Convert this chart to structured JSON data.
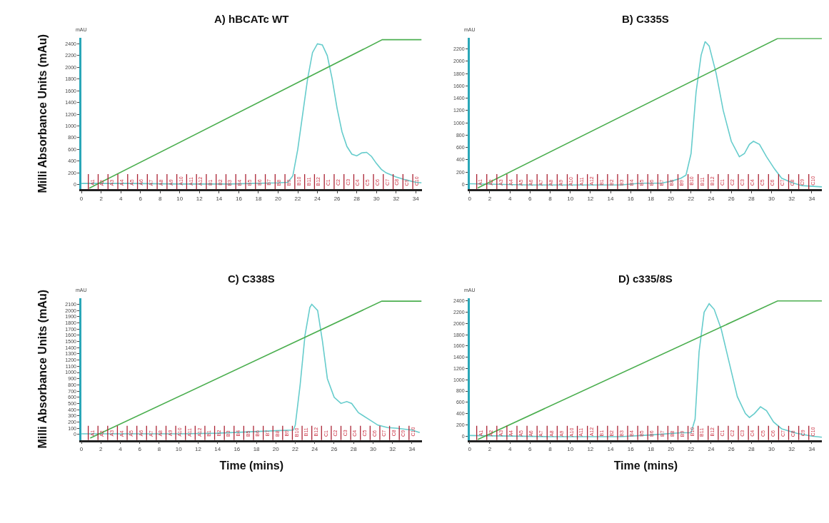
{
  "chart_data": [
    {
      "type": "line",
      "title": "A) hBCATc WT",
      "ylabel": "Milli Absorbance Units (mAu)",
      "xlim": [
        0,
        34.6
      ],
      "ylim": [
        -80,
        2500
      ],
      "xticks": [
        0,
        2,
        4,
        6,
        8,
        10,
        12,
        14,
        16,
        18,
        20,
        22,
        24,
        26,
        28,
        30,
        32,
        34
      ],
      "yticks": [
        0,
        200,
        400,
        600,
        800,
        1000,
        1200,
        1400,
        1600,
        1800,
        2000,
        2200,
        2400
      ],
      "marker": "none",
      "series": [
        {
          "color": "#66cccc",
          "x": [
            0,
            5,
            10,
            15,
            20,
            21,
            21.5,
            22,
            22.5,
            23,
            23.5,
            24,
            24.5,
            25,
            25.5,
            26,
            26.5,
            27,
            27.5,
            28,
            28.5,
            29,
            29.5,
            30,
            30.5,
            31,
            32,
            33,
            34,
            34.6
          ],
          "values": [
            20,
            20,
            10,
            10,
            30,
            40,
            150,
            600,
            1200,
            1800,
            2250,
            2400,
            2380,
            2200,
            1800,
            1300,
            900,
            650,
            520,
            490,
            540,
            550,
            480,
            360,
            260,
            200,
            130,
            80,
            40,
            30
          ]
        },
        {
          "color": "#4caf50",
          "x": [
            0.8,
            30.6,
            34.6
          ],
          "values": [
            -60,
            2470,
            2470
          ]
        }
      ],
      "annotations": [
        "mAU"
      ],
      "ref_lines": [
        {
          "axis": "x",
          "value": 0.7,
          "label": "A1"
        },
        {
          "axis": "x",
          "value": 1.7,
          "label": "A2"
        },
        {
          "axis": "x",
          "value": 2.7,
          "label": "A3"
        },
        {
          "axis": "x",
          "value": 3.7,
          "label": "A4"
        },
        {
          "axis": "x",
          "value": 4.7,
          "label": "A5"
        },
        {
          "axis": "x",
          "value": 5.7,
          "label": "A6"
        },
        {
          "axis": "x",
          "value": 6.7,
          "label": "A7"
        },
        {
          "axis": "x",
          "value": 7.7,
          "label": "A8"
        },
        {
          "axis": "x",
          "value": 8.7,
          "label": "A9"
        },
        {
          "axis": "x",
          "value": 9.7,
          "label": "A10"
        },
        {
          "axis": "x",
          "value": 10.7,
          "label": "A11"
        },
        {
          "axis": "x",
          "value": 11.7,
          "label": "A12"
        },
        {
          "axis": "x",
          "value": 12.7,
          "label": "B1"
        },
        {
          "axis": "x",
          "value": 13.7,
          "label": "B2"
        },
        {
          "axis": "x",
          "value": 14.7,
          "label": "B3"
        },
        {
          "axis": "x",
          "value": 15.7,
          "label": "B4"
        },
        {
          "axis": "x",
          "value": 16.7,
          "label": "B5"
        },
        {
          "axis": "x",
          "value": 17.7,
          "label": "B6"
        },
        {
          "axis": "x",
          "value": 18.7,
          "label": "B7"
        },
        {
          "axis": "x",
          "value": 19.7,
          "label": "B8"
        },
        {
          "axis": "x",
          "value": 20.7,
          "label": "B9"
        },
        {
          "axis": "x",
          "value": 21.7,
          "label": "B10"
        },
        {
          "axis": "x",
          "value": 22.7,
          "label": "B11"
        },
        {
          "axis": "x",
          "value": 23.7,
          "label": "B12"
        },
        {
          "axis": "x",
          "value": 24.7,
          "label": "C1"
        },
        {
          "axis": "x",
          "value": 25.7,
          "label": "C2"
        },
        {
          "axis": "x",
          "value": 26.7,
          "label": "C3"
        },
        {
          "axis": "x",
          "value": 27.7,
          "label": "C4"
        },
        {
          "axis": "x",
          "value": 28.7,
          "label": "C5"
        },
        {
          "axis": "x",
          "value": 29.7,
          "label": "C6"
        },
        {
          "axis": "x",
          "value": 30.7,
          "label": "C7"
        },
        {
          "axis": "x",
          "value": 31.7,
          "label": "C8"
        },
        {
          "axis": "x",
          "value": 32.7,
          "label": "C9"
        },
        {
          "axis": "x",
          "value": 33.7,
          "label": "C10"
        }
      ]
    },
    {
      "type": "line",
      "title": "B) C335S",
      "xlim": [
        0,
        35
      ],
      "ylim": [
        -80,
        2380
      ],
      "xticks": [
        0,
        2,
        4,
        6,
        8,
        10,
        12,
        14,
        16,
        18,
        20,
        22,
        24,
        26,
        28,
        30,
        32,
        34
      ],
      "yticks": [
        0,
        200,
        400,
        600,
        800,
        1000,
        1200,
        1400,
        1600,
        1800,
        2000,
        2200
      ],
      "marker": "none",
      "series": [
        {
          "color": "#66cccc",
          "x": [
            0,
            6,
            15,
            17,
            19,
            20,
            21,
            21.5,
            22,
            22.5,
            23,
            23.4,
            23.8,
            24.5,
            25.2,
            26,
            26.8,
            27.3,
            27.8,
            28.2,
            28.8,
            29.5,
            30.3,
            31,
            32,
            33,
            35
          ],
          "values": [
            10,
            -10,
            -10,
            20,
            20,
            50,
            100,
            150,
            500,
            1500,
            2100,
            2320,
            2250,
            1800,
            1200,
            700,
            450,
            500,
            650,
            700,
            650,
            450,
            250,
            100,
            30,
            -20,
            -40
          ]
        },
        {
          "color": "#4caf50",
          "x": [
            0.8,
            30.6,
            35
          ],
          "values": [
            -60,
            2370,
            2370
          ]
        }
      ],
      "annotations": [
        "mAU"
      ],
      "ref_lines": [
        {
          "axis": "x",
          "value": 0.7,
          "label": "A1"
        },
        {
          "axis": "x",
          "value": 1.7,
          "label": "A2"
        },
        {
          "axis": "x",
          "value": 2.7,
          "label": "A3"
        },
        {
          "axis": "x",
          "value": 3.7,
          "label": "A4"
        },
        {
          "axis": "x",
          "value": 4.7,
          "label": "A5"
        },
        {
          "axis": "x",
          "value": 5.7,
          "label": "A6"
        },
        {
          "axis": "x",
          "value": 6.7,
          "label": "A7"
        },
        {
          "axis": "x",
          "value": 7.7,
          "label": "A8"
        },
        {
          "axis": "x",
          "value": 8.7,
          "label": "A9"
        },
        {
          "axis": "x",
          "value": 9.7,
          "label": "A10"
        },
        {
          "axis": "x",
          "value": 10.7,
          "label": "A11"
        },
        {
          "axis": "x",
          "value": 11.7,
          "label": "A12"
        },
        {
          "axis": "x",
          "value": 12.7,
          "label": "B1"
        },
        {
          "axis": "x",
          "value": 13.7,
          "label": "B2"
        },
        {
          "axis": "x",
          "value": 14.7,
          "label": "B3"
        },
        {
          "axis": "x",
          "value": 15.7,
          "label": "B4"
        },
        {
          "axis": "x",
          "value": 16.7,
          "label": "B5"
        },
        {
          "axis": "x",
          "value": 17.7,
          "label": "B6"
        },
        {
          "axis": "x",
          "value": 18.7,
          "label": "B7"
        },
        {
          "axis": "x",
          "value": 19.7,
          "label": "B8"
        },
        {
          "axis": "x",
          "value": 20.7,
          "label": "B9"
        },
        {
          "axis": "x",
          "value": 21.7,
          "label": "B10"
        },
        {
          "axis": "x",
          "value": 22.7,
          "label": "B11"
        },
        {
          "axis": "x",
          "value": 23.7,
          "label": "B12"
        },
        {
          "axis": "x",
          "value": 24.7,
          "label": "C1"
        },
        {
          "axis": "x",
          "value": 25.7,
          "label": "C2"
        },
        {
          "axis": "x",
          "value": 26.7,
          "label": "C3"
        },
        {
          "axis": "x",
          "value": 27.7,
          "label": "C4"
        },
        {
          "axis": "x",
          "value": 28.7,
          "label": "C5"
        },
        {
          "axis": "x",
          "value": 29.7,
          "label": "C6"
        },
        {
          "axis": "x",
          "value": 30.7,
          "label": "C7"
        },
        {
          "axis": "x",
          "value": 31.7,
          "label": "C8"
        },
        {
          "axis": "x",
          "value": 32.7,
          "label": "C9"
        },
        {
          "axis": "x",
          "value": 33.7,
          "label": "C10"
        }
      ]
    },
    {
      "type": "line",
      "title": "C) C338S",
      "ylabel": "Milli Absorbance Units (mAu)",
      "xlabel": "Time (mins)",
      "xlim": [
        0,
        35
      ],
      "ylim": [
        -90,
        2200
      ],
      "xticks": [
        0,
        2,
        4,
        6,
        8,
        10,
        12,
        14,
        16,
        18,
        20,
        22,
        24,
        26,
        28,
        30,
        32,
        34
      ],
      "yticks": [
        0,
        100,
        200,
        300,
        400,
        500,
        600,
        700,
        800,
        900,
        1000,
        1100,
        1200,
        1300,
        1400,
        1500,
        1600,
        1700,
        1800,
        1900,
        2000,
        2100
      ],
      "marker": "none",
      "series": [
        {
          "color": "#66cccc",
          "x": [
            0,
            10,
            14,
            20,
            21.8,
            22,
            22.5,
            23,
            23.5,
            23.7,
            24.3,
            24.8,
            25.3,
            26,
            26.7,
            27.3,
            27.8,
            28.5,
            29.5,
            30.5,
            31.5,
            32.5,
            34,
            34.8
          ],
          "values": [
            10,
            10,
            20,
            60,
            70,
            150,
            800,
            1600,
            2050,
            2100,
            2000,
            1500,
            900,
            600,
            500,
            530,
            500,
            350,
            250,
            150,
            110,
            100,
            70,
            30
          ]
        },
        {
          "color": "#4caf50",
          "x": [
            0.9,
            30.9,
            35
          ],
          "values": [
            -60,
            2150,
            2150
          ]
        }
      ],
      "annotations": [
        "mAU"
      ],
      "ref_lines": [
        {
          "axis": "x",
          "value": 0.7,
          "label": "A1"
        },
        {
          "axis": "x",
          "value": 1.7,
          "label": "A2"
        },
        {
          "axis": "x",
          "value": 2.7,
          "label": "A3"
        },
        {
          "axis": "x",
          "value": 3.7,
          "label": "A4"
        },
        {
          "axis": "x",
          "value": 4.7,
          "label": "A5"
        },
        {
          "axis": "x",
          "value": 5.7,
          "label": "A6"
        },
        {
          "axis": "x",
          "value": 6.7,
          "label": "A7"
        },
        {
          "axis": "x",
          "value": 7.7,
          "label": "A8"
        },
        {
          "axis": "x",
          "value": 8.7,
          "label": "A9"
        },
        {
          "axis": "x",
          "value": 9.7,
          "label": "A10"
        },
        {
          "axis": "x",
          "value": 10.7,
          "label": "A11"
        },
        {
          "axis": "x",
          "value": 11.7,
          "label": "A12"
        },
        {
          "axis": "x",
          "value": 12.7,
          "label": "B1"
        },
        {
          "axis": "x",
          "value": 13.7,
          "label": "B2"
        },
        {
          "axis": "x",
          "value": 14.7,
          "label": "B3"
        },
        {
          "axis": "x",
          "value": 15.7,
          "label": "B4"
        },
        {
          "axis": "x",
          "value": 16.7,
          "label": "B5"
        },
        {
          "axis": "x",
          "value": 17.7,
          "label": "B6"
        },
        {
          "axis": "x",
          "value": 18.7,
          "label": "B7"
        },
        {
          "axis": "x",
          "value": 19.7,
          "label": "B8"
        },
        {
          "axis": "x",
          "value": 20.7,
          "label": "B9"
        },
        {
          "axis": "x",
          "value": 21.7,
          "label": "B10"
        },
        {
          "axis": "x",
          "value": 22.7,
          "label": "B11"
        },
        {
          "axis": "x",
          "value": 23.7,
          "label": "B12"
        },
        {
          "axis": "x",
          "value": 24.7,
          "label": "C1"
        },
        {
          "axis": "x",
          "value": 25.7,
          "label": "C2"
        },
        {
          "axis": "x",
          "value": 26.7,
          "label": "C3"
        },
        {
          "axis": "x",
          "value": 27.7,
          "label": "C4"
        },
        {
          "axis": "x",
          "value": 28.7,
          "label": "C5"
        },
        {
          "axis": "x",
          "value": 29.7,
          "label": "C6"
        },
        {
          "axis": "x",
          "value": 30.7,
          "label": "C7"
        },
        {
          "axis": "x",
          "value": 31.7,
          "label": "C8"
        },
        {
          "axis": "x",
          "value": 32.7,
          "label": "C9"
        },
        {
          "axis": "x",
          "value": 33.7,
          "label": "C10"
        }
      ]
    },
    {
      "type": "line",
      "title": "D) c335/8S",
      "xlabel": "Time (mins)",
      "xlim": [
        0,
        35
      ],
      "ylim": [
        -70,
        2450
      ],
      "xticks": [
        0,
        2,
        4,
        6,
        8,
        10,
        12,
        14,
        16,
        18,
        20,
        22,
        24,
        26,
        28,
        30,
        32,
        34
      ],
      "yticks": [
        0,
        200,
        400,
        600,
        800,
        1000,
        1200,
        1400,
        1600,
        1800,
        2000,
        2200,
        2400
      ],
      "marker": "none",
      "series": [
        {
          "color": "#66cccc",
          "x": [
            0,
            8,
            15,
            18,
            21,
            22,
            22.4,
            22.8,
            23.3,
            23.8,
            24.3,
            25,
            25.8,
            26.6,
            27.4,
            27.8,
            28.3,
            28.9,
            29.5,
            30.2,
            31,
            32.5,
            34,
            35
          ],
          "values": [
            10,
            -10,
            -10,
            20,
            60,
            60,
            300,
            1500,
            2200,
            2350,
            2250,
            1900,
            1300,
            700,
            400,
            330,
            400,
            520,
            450,
            250,
            130,
            50,
            0,
            -20
          ]
        },
        {
          "color": "#4caf50",
          "x": [
            0.8,
            30.6,
            35
          ],
          "values": [
            -60,
            2400,
            2400
          ]
        }
      ],
      "annotations": [
        "mAU"
      ],
      "ref_lines": [
        {
          "axis": "x",
          "value": 0.7,
          "label": "A1"
        },
        {
          "axis": "x",
          "value": 1.7,
          "label": "A2"
        },
        {
          "axis": "x",
          "value": 2.7,
          "label": "A3"
        },
        {
          "axis": "x",
          "value": 3.7,
          "label": "A4"
        },
        {
          "axis": "x",
          "value": 4.7,
          "label": "A5"
        },
        {
          "axis": "x",
          "value": 5.7,
          "label": "A6"
        },
        {
          "axis": "x",
          "value": 6.7,
          "label": "A7"
        },
        {
          "axis": "x",
          "value": 7.7,
          "label": "A8"
        },
        {
          "axis": "x",
          "value": 8.7,
          "label": "A9"
        },
        {
          "axis": "x",
          "value": 9.7,
          "label": "A10"
        },
        {
          "axis": "x",
          "value": 10.7,
          "label": "A11"
        },
        {
          "axis": "x",
          "value": 11.7,
          "label": "A12"
        },
        {
          "axis": "x",
          "value": 12.7,
          "label": "B1"
        },
        {
          "axis": "x",
          "value": 13.7,
          "label": "B2"
        },
        {
          "axis": "x",
          "value": 14.7,
          "label": "B3"
        },
        {
          "axis": "x",
          "value": 15.7,
          "label": "B4"
        },
        {
          "axis": "x",
          "value": 16.7,
          "label": "B5"
        },
        {
          "axis": "x",
          "value": 17.7,
          "label": "B6"
        },
        {
          "axis": "x",
          "value": 18.7,
          "label": "B7"
        },
        {
          "axis": "x",
          "value": 19.7,
          "label": "B8"
        },
        {
          "axis": "x",
          "value": 20.7,
          "label": "B9"
        },
        {
          "axis": "x",
          "value": 21.7,
          "label": "B10"
        },
        {
          "axis": "x",
          "value": 22.7,
          "label": "B11"
        },
        {
          "axis": "x",
          "value": 23.7,
          "label": "B12"
        },
        {
          "axis": "x",
          "value": 24.7,
          "label": "C1"
        },
        {
          "axis": "x",
          "value": 25.7,
          "label": "C2"
        },
        {
          "axis": "x",
          "value": 26.7,
          "label": "C3"
        },
        {
          "axis": "x",
          "value": 27.7,
          "label": "C4"
        },
        {
          "axis": "x",
          "value": 28.7,
          "label": "C5"
        },
        {
          "axis": "x",
          "value": 29.7,
          "label": "C6"
        },
        {
          "axis": "x",
          "value": 30.7,
          "label": "C7"
        },
        {
          "axis": "x",
          "value": 31.7,
          "label": "C8"
        },
        {
          "axis": "x",
          "value": 32.7,
          "label": "C9"
        },
        {
          "axis": "x",
          "value": 33.7,
          "label": "C10"
        }
      ]
    }
  ]
}
